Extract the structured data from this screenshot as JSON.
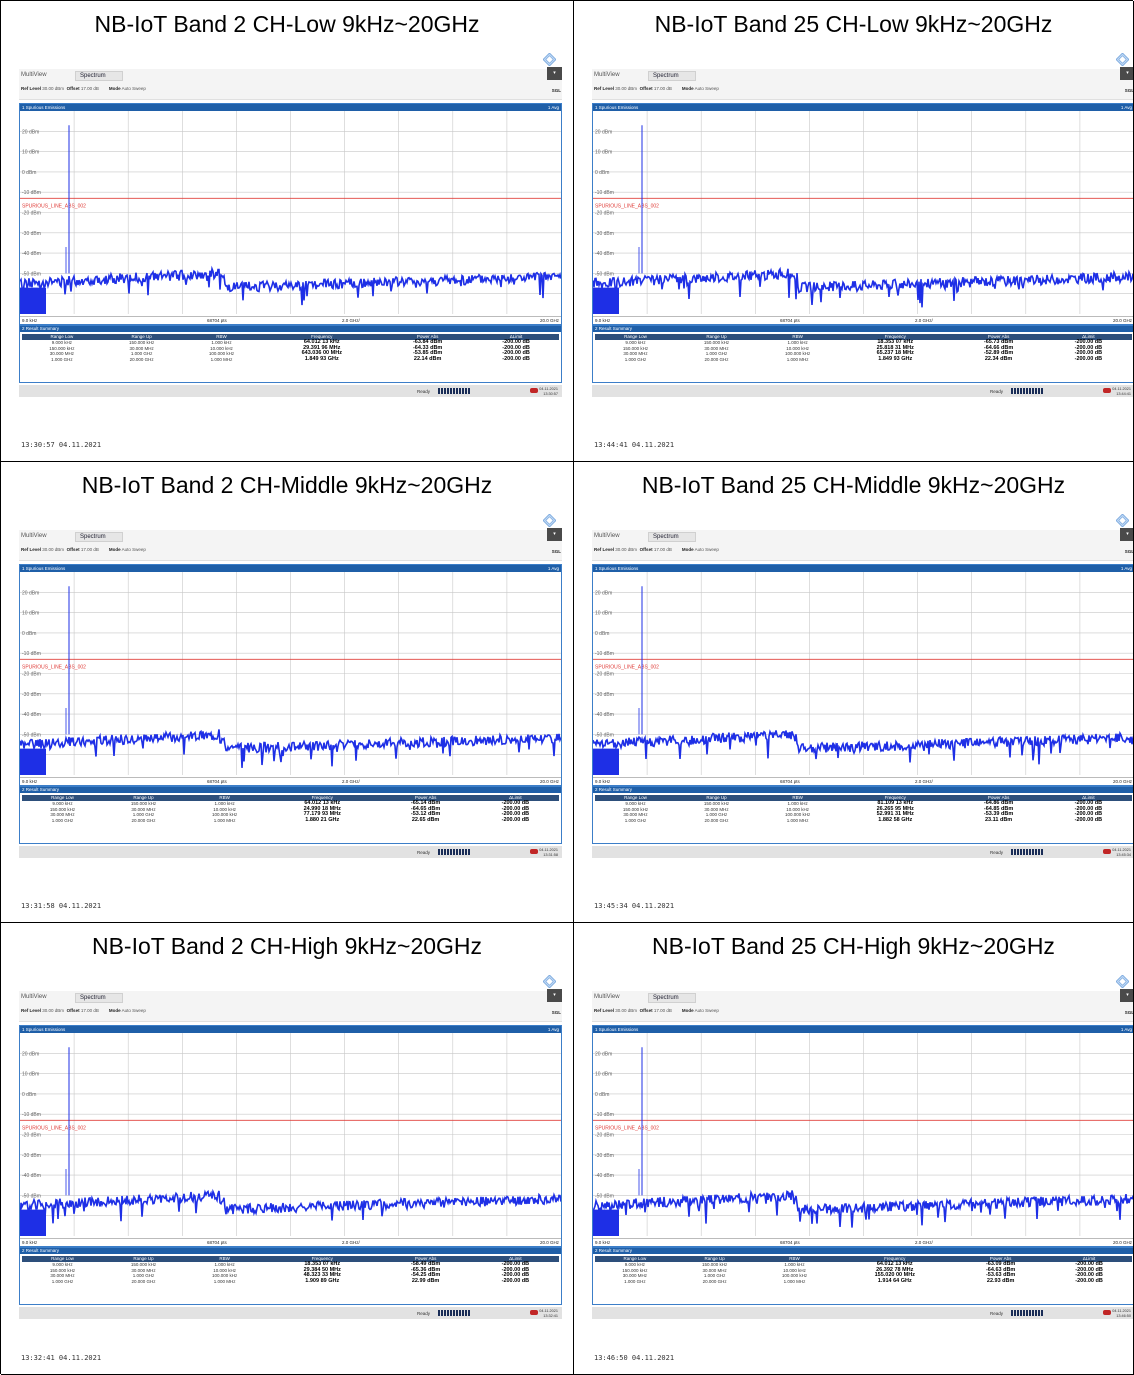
{
  "cells": [
    {
      "title": "NB-IoT Band 2 CH-Low 9kHz~20GHz",
      "timestamp": "13:30:57  04.11.2021",
      "status_datetime": [
        "04.11.2021",
        "13:30:57"
      ],
      "frequencies": [
        "64.012 13 kHz",
        "29.391 96 MHz",
        "643.036 00 MHz",
        "1.849 93 GHz"
      ],
      "powers": [
        "-63.84 dBm",
        "-64.33 dBm",
        "-53.85 dBm",
        "22.14 dBm"
      ]
    },
    {
      "title": "NB-IoT Band 25 CH-Low 9kHz~20GHz",
      "timestamp": "13:44:41  04.11.2021",
      "status_datetime": [
        "04.11.2021",
        "13:44:41"
      ],
      "frequencies": [
        "18.353 07 kHz",
        "25.818 31 MHz",
        "65.237 18 MHz",
        "1.849 93 GHz"
      ],
      "powers": [
        "-65.73 dBm",
        "-64.66 dBm",
        "-52.89 dBm",
        "22.34 dBm"
      ]
    },
    {
      "title": "NB-IoT Band 2 CH-Middle 9kHz~20GHz",
      "timestamp": "13:31:58  04.11.2021",
      "status_datetime": [
        "04.11.2021",
        "13:31:58"
      ],
      "frequencies": [
        "64.012 13 kHz",
        "24.990 18 MHz",
        "77.179 93 MHz",
        "1.880 21 GHz"
      ],
      "powers": [
        "-65.14 dBm",
        "-64.65 dBm",
        "-53.12 dBm",
        "22.65 dBm"
      ]
    },
    {
      "title": "NB-IoT Band 25 CH-Middle 9kHz~20GHz",
      "timestamp": "13:45:34  04.11.2021",
      "status_datetime": [
        "04.11.2021",
        "13:45:34"
      ],
      "frequencies": [
        "81.109 13 kHz",
        "26.265 95 MHz",
        "52.991 31 MHz",
        "1.882 58 GHz"
      ],
      "powers": [
        "-64.86 dBm",
        "-64.85 dBm",
        "-53.39 dBm",
        "23.11 dBm"
      ]
    },
    {
      "title": "NB-IoT Band 2 CH-High 9kHz~20GHz",
      "timestamp": "13:32:41  04.11.2021",
      "status_datetime": [
        "04.11.2021",
        "13:32:41"
      ],
      "frequencies": [
        "18.353 07 kHz",
        "29.384 50 MHz",
        "48.323 33 MHz",
        "1.909 89 GHz"
      ],
      "powers": [
        "-58.49 dBm",
        "-65.36 dBm",
        "-54.25 dBm",
        "22.99 dBm"
      ]
    },
    {
      "title": "NB-IoT Band 25 CH-High 9kHz~20GHz",
      "timestamp": "13:46:50  04.11.2021",
      "status_datetime": [
        "04.11.2021",
        "13:46:50"
      ],
      "frequencies": [
        "64.012 13 kHz",
        "26.392 78 MHz",
        "155.020 00 MHz",
        "1.914 64 GHz"
      ],
      "powers": [
        "-63.09 dBm",
        "-64.63 dBm",
        "-53.63 dBm",
        "22.93 dBm"
      ]
    }
  ],
  "analyzer": {
    "multiview": "MultiView",
    "tab": "Spectrum",
    "ref_level_label": "Ref Level",
    "ref_level": "30.00 dBm",
    "offset_label": "Offset",
    "offset": "17.00 dB",
    "mode_label": "Mode",
    "mode": "Auto Sweep",
    "sgl": "SGL",
    "window1": "1 Spurious Emissions",
    "window1_tag": "1 Avg",
    "limit_line": "SPURIOUS_LINE_ABS_002",
    "y_tick_labels": [
      "20 dBm",
      "10 dBm",
      "0 dBm",
      "-10 dBm",
      "-20 dBm",
      "-30 dBm",
      "-40 dBm",
      "-50 dBm",
      "-60 dBm"
    ],
    "x_start": "9.0 kHz",
    "points": "68704 pts",
    "x_div": "2.0 GHz/",
    "x_stop": "20.0 GHz",
    "window2": "2 Result Summary",
    "columns": [
      "Range Low",
      "Range Up",
      "RBW",
      "Frequency",
      "Power Abs",
      "ΔLimit"
    ],
    "range_low": [
      "9.000 kHz",
      "150.000 kHz",
      "30.000 MHz",
      "1.000 GHz"
    ],
    "range_up": [
      "150.000 kHz",
      "30.000 MHz",
      "1.000 GHz",
      "20.000 GHz"
    ],
    "rbw": [
      "1.000 kHz",
      "10.000 kHz",
      "100.000 kHz",
      "1.000 MHz"
    ],
    "delta_limit": [
      "-200.00 dB",
      "-200.00 dB",
      "-200.00 dB",
      "-200.00 dB"
    ],
    "ready": "Ready"
  },
  "chart_data": {
    "type": "line",
    "y_unit": "dBm",
    "ylim": [
      -70,
      30
    ],
    "x_range": [
      "9.0 kHz",
      "20.0 GHz"
    ],
    "limit_line_dbm": -13,
    "colors": {
      "trace": "#1e2fe6",
      "limit": "#e0403c",
      "header": "#1f5fa8"
    }
  }
}
